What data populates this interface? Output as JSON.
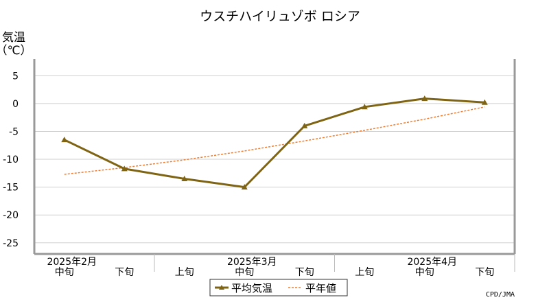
{
  "chart_data": {
    "type": "line",
    "title": "ウスチハイリュゾボ ロシア",
    "ylabel": [
      "気温",
      "（℃）"
    ],
    "ylim": [
      -27,
      8
    ],
    "yticks": [
      5,
      0,
      -5,
      -10,
      -15,
      -20,
      -25
    ],
    "categories": [
      "中旬",
      "下旬",
      "上旬",
      "中旬",
      "下旬",
      "上旬",
      "中旬",
      "下旬"
    ],
    "month_labels": [
      {
        "label": "2025年2月",
        "index": 0
      },
      {
        "label": "2025年3月",
        "index": 3
      },
      {
        "label": "2025年4月",
        "index": 6
      }
    ],
    "series": [
      {
        "name": "平均気温",
        "values": [
          -6.5,
          -11.7,
          -13.5,
          -15.0,
          -4.0,
          -0.6,
          0.9,
          0.2
        ],
        "color": "#7f6414",
        "style": "solid-marker"
      },
      {
        "name": "平年値",
        "values": [
          -12.7,
          -11.5,
          -10.1,
          -8.5,
          -6.7,
          -4.8,
          -2.8,
          -0.6
        ],
        "color": "#ed7d31",
        "style": "dashed"
      }
    ],
    "credit": "CPD/JMA"
  }
}
